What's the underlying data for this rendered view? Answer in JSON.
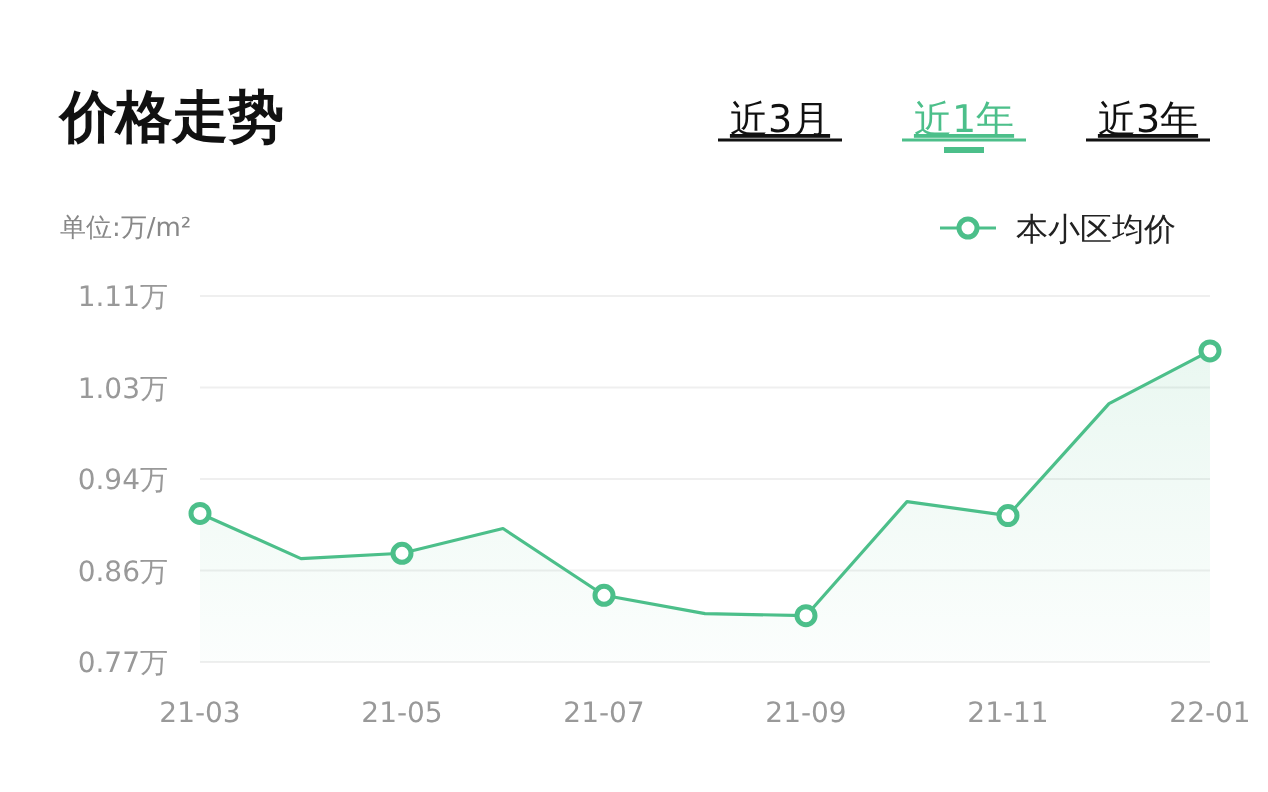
{
  "chart_data": {
    "type": "area",
    "title": "价格走势",
    "ylabel": "单位:万/m²",
    "annotations": [
      "近3月",
      "近1年",
      "近3年"
    ],
    "categories": [
      "21-03",
      null,
      "21-05",
      null,
      "21-07",
      null,
      "21-09",
      null,
      "21-11",
      null,
      "22-01"
    ],
    "series": [
      {
        "name": "本小区均价",
        "color": "#4cbf8a",
        "values": [
          0.908,
          0.866,
          0.871,
          0.894,
          0.832,
          0.815,
          0.813,
          0.919,
          0.906,
          1.01,
          1.059
        ]
      }
    ],
    "ylim": [
      0.77,
      1.11
    ],
    "yticks": [
      {
        "value": 0.77,
        "label": "0.77万"
      },
      {
        "value": 0.855,
        "label": "0.86万"
      },
      {
        "value": 0.94,
        "label": "0.94万"
      },
      {
        "value": 1.025,
        "label": "1.03万"
      },
      {
        "value": 1.11,
        "label": "1.11万"
      }
    ],
    "grid": "y",
    "legend": "top right",
    "marker": "circle"
  }
}
